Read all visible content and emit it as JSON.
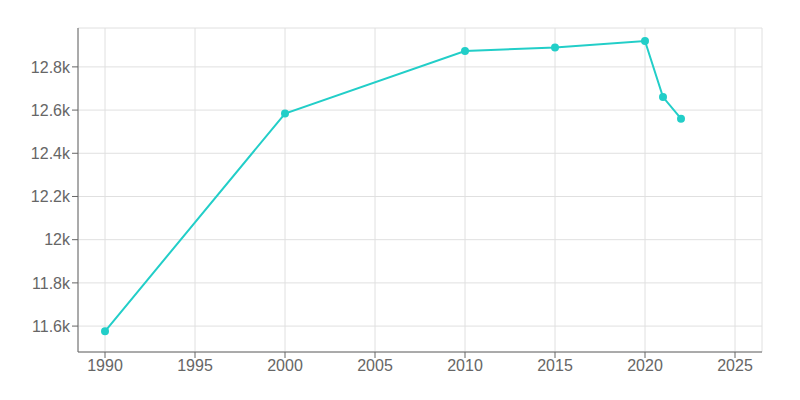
{
  "chart_data": {
    "type": "line",
    "x": [
      1990,
      2000,
      2010,
      2015,
      2020,
      2021,
      2022
    ],
    "values": [
      11576,
      12584,
      12873,
      12890,
      12920,
      12660,
      12560
    ],
    "color": "#22CEC8",
    "marker": "circle",
    "xlim": [
      1988.5,
      2026.5
    ],
    "xticks": [
      1990,
      1995,
      2000,
      2005,
      2010,
      2015,
      2020,
      2025
    ],
    "ylim": [
      11480,
      12980
    ],
    "yticks": [
      {
        "value": 11600,
        "label": "11.6k"
      },
      {
        "value": 11800,
        "label": "11.8k"
      },
      {
        "value": 12000,
        "label": "12k"
      },
      {
        "value": 12200,
        "label": "12.2k"
      },
      {
        "value": 12400,
        "label": "12.4k"
      },
      {
        "value": 12600,
        "label": "12.6k"
      },
      {
        "value": 12800,
        "label": "12.8k"
      }
    ],
    "grid": true
  }
}
